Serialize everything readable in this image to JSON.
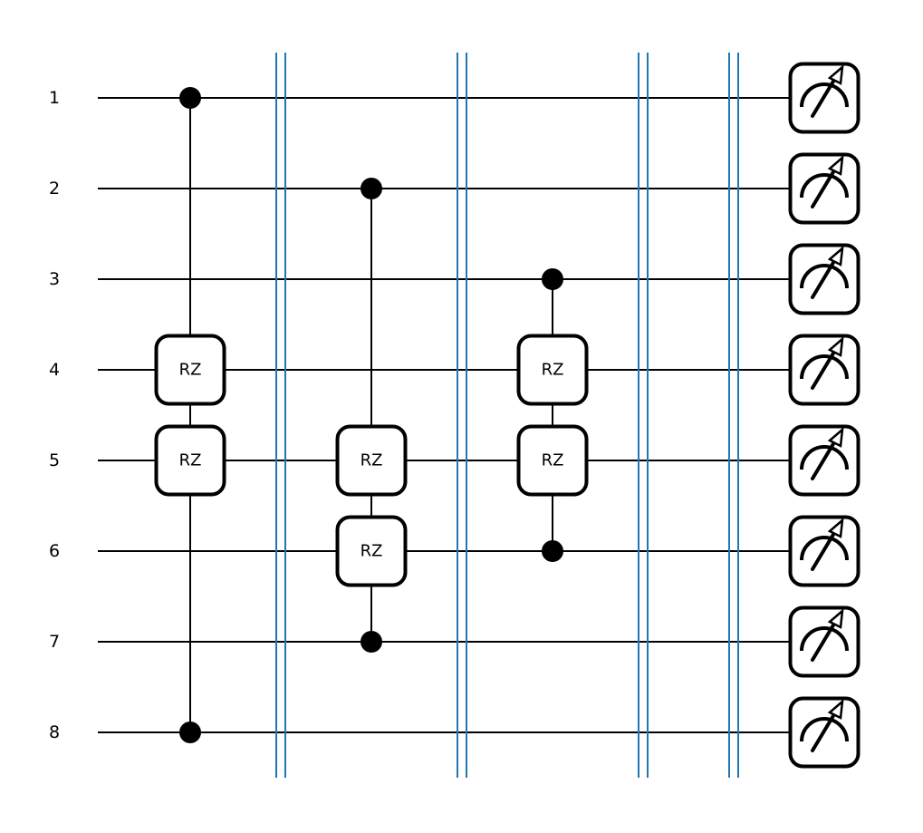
{
  "wires": [
    "1",
    "2",
    "3",
    "4",
    "5",
    "6",
    "7",
    "8"
  ],
  "gate_label": "RZ",
  "colors": {
    "barrier": "#1f77b4",
    "line": "#000000",
    "background": "#ffffff"
  },
  "operations": [
    {
      "column": 0,
      "control": 1,
      "targets": [
        4,
        5
      ],
      "far_control": 8,
      "gate": "RZ"
    },
    {
      "column": 2,
      "control": 2,
      "targets": [
        5,
        6
      ],
      "far_control": 7,
      "gate": "RZ"
    },
    {
      "column": 4,
      "control": 3,
      "targets": [
        4,
        5
      ],
      "far_control": 6,
      "gate": "RZ"
    }
  ],
  "barrier_after_columns": [
    1,
    3,
    5,
    6
  ],
  "measurement_column": 7,
  "measurement_icon": "meter-icon"
}
